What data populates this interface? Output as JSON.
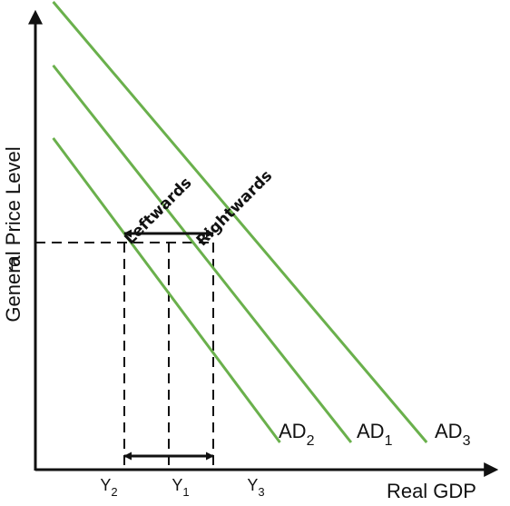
{
  "chart_data": {
    "type": "line",
    "title": "",
    "xlabel": "Real GDP",
    "ylabel": "General Price Level",
    "x_ticks": [
      {
        "base": "Y",
        "sub": "2",
        "value": 2
      },
      {
        "base": "Y",
        "sub": "1",
        "value": 3
      },
      {
        "base": "Y",
        "sub": "3",
        "value": 4
      }
    ],
    "y_ticks": [
      {
        "label": "P",
        "value": 5
      }
    ],
    "xlim": [
      0,
      10
    ],
    "ylim": [
      0,
      10
    ],
    "grid": false,
    "series": [
      {
        "name": "AD2",
        "label_base": "AD",
        "label_sub": "2",
        "color": "#6ab04c",
        "x": [
          0.4,
          5.5
        ],
        "y": [
          7.3,
          0.6
        ]
      },
      {
        "name": "AD1",
        "label_base": "AD",
        "label_sub": "1",
        "color": "#6ab04c",
        "x": [
          0.4,
          7.1
        ],
        "y": [
          8.9,
          0.6
        ]
      },
      {
        "name": "AD3",
        "label_base": "AD",
        "label_sub": "3",
        "color": "#6ab04c",
        "x": [
          0.4,
          8.8
        ],
        "y": [
          10.3,
          0.6
        ]
      }
    ],
    "guides": {
      "price_level": 5,
      "levels": [
        2,
        3,
        4
      ]
    },
    "annotations": [
      {
        "text": "Leftwards",
        "from": 3,
        "to": 2,
        "y": 5.2
      },
      {
        "text": "Rightwards",
        "from": 3,
        "to": 4,
        "y": 5.2
      }
    ],
    "bottom_arrow": {
      "from": 2,
      "to": 4,
      "y": 0.3,
      "double_headed": true
    }
  }
}
